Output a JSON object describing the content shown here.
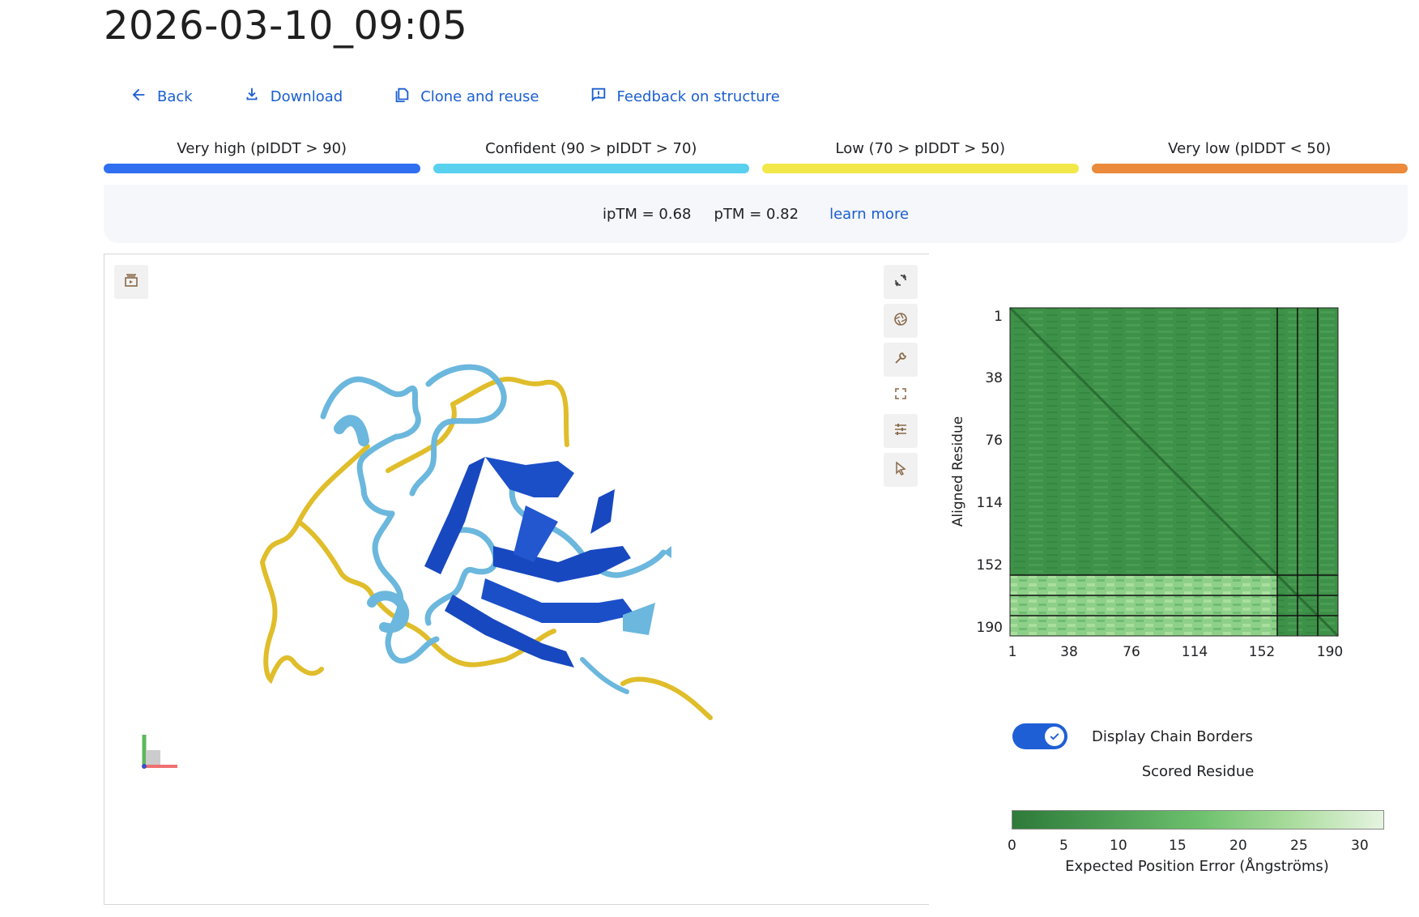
{
  "page": {
    "title": "2026-03-10_09:05"
  },
  "actions": [
    {
      "label": "Back",
      "icon": "arrow-back-icon"
    },
    {
      "label": "Download",
      "icon": "download-icon"
    },
    {
      "label": "Clone and reuse",
      "icon": "copy-icon"
    },
    {
      "label": "Feedback on structure",
      "icon": "feedback-icon"
    }
  ],
  "legend": [
    {
      "label": "Very high (pIDDT > 90)",
      "color": "#2f6ff0"
    },
    {
      "label": "Confident (90 > pIDDT > 70)",
      "color": "#58d0ee"
    },
    {
      "label": "Low (70 > pIDDT > 50)",
      "color": "#f2e84a"
    },
    {
      "label": "Very low (pIDDT < 50)",
      "color": "#ea8a3a"
    }
  ],
  "metrics": {
    "iptm": "ipTM = 0.68",
    "ptm": "pTM = 0.82",
    "learn_more": "learn more"
  },
  "viewer": {
    "top_left_icon": "sequence-panel-icon",
    "toolbar_icons": [
      "reset-rotation-icon",
      "camera-aperture-icon",
      "wrench-icon",
      "fullscreen-icon",
      "tune-sliders-icon",
      "pointer-icon"
    ]
  },
  "pae": {
    "y_axis_label": "Aligned Residue",
    "x_axis_label": "Scored Residue",
    "ticks": [
      "1",
      "38",
      "76",
      "114",
      "152",
      "190"
    ],
    "toggle_label": "Display Chain Borders",
    "toggle_on": true,
    "colorbar_ticks": [
      "0",
      "5",
      "10",
      "15",
      "20",
      "25",
      "30"
    ],
    "colorbar_label": "Expected Position Error (Ångströms)",
    "colors": {
      "low": "#2e7a3a",
      "mid": "#6cc06c",
      "high": "#e6f4e1"
    }
  }
}
